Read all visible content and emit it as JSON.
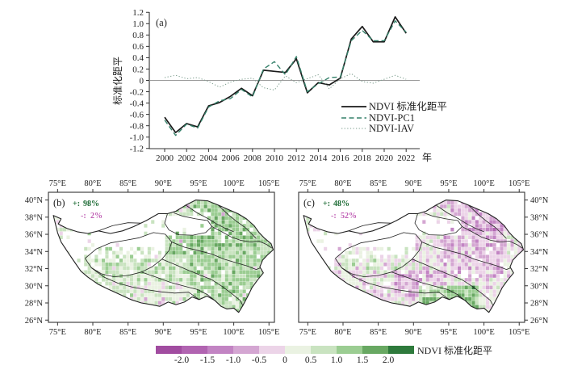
{
  "chart_data": [
    {
      "id": "a",
      "type": "line",
      "panel_label": "(a)",
      "ylabel": "标准化距平",
      "x_unit": "年",
      "years": [
        2000,
        2001,
        2002,
        2003,
        2004,
        2005,
        2006,
        2007,
        2008,
        2009,
        2010,
        2011,
        2012,
        2013,
        2014,
        2015,
        2016,
        2017,
        2018,
        2019,
        2020,
        2021,
        2022
      ],
      "x_tick_labels": [
        "2000",
        "2002",
        "2004",
        "2006",
        "2008",
        "2010",
        "2012",
        "2014",
        "2016",
        "2018",
        "2020",
        "2022"
      ],
      "ylim": [
        -1.2,
        1.2
      ],
      "y_tick_labels": [
        "1.2",
        "1.0",
        "0.8",
        "0.6",
        "0.4",
        "0.2",
        "0",
        "-0.2",
        "-0.4",
        "-0.6",
        "-0.8",
        "-1.0",
        "-1.2"
      ],
      "zero_line": true,
      "legend_position": "inside-right-bottom",
      "series": [
        {
          "name": "NDVI 标准化距平",
          "style": "solid",
          "color": "#1a1a1a",
          "values": [
            -0.65,
            -0.92,
            -0.76,
            -0.82,
            -0.45,
            -0.39,
            -0.28,
            -0.14,
            -0.27,
            0.18,
            0.16,
            0.14,
            0.38,
            -0.22,
            -0.04,
            -0.08,
            0.04,
            0.73,
            0.95,
            0.68,
            0.68,
            1.12,
            0.83
          ]
        },
        {
          "name": "NDVI-PC1",
          "style": "dashed",
          "color": "#35816a",
          "values": [
            -0.7,
            -0.97,
            -0.77,
            -0.84,
            -0.47,
            -0.36,
            -0.32,
            -0.16,
            -0.29,
            0.2,
            0.33,
            0.1,
            0.42,
            -0.2,
            -0.06,
            0.05,
            0.06,
            0.7,
            0.88,
            0.7,
            0.7,
            1.05,
            0.85
          ]
        },
        {
          "name": "NDVI-IAV",
          "style": "dotted",
          "color": "#7d9e8e",
          "values": [
            0.05,
            0.09,
            0.03,
            0.05,
            -0.02,
            -0.12,
            -0.03,
            0.02,
            0.04,
            -0.13,
            -0.17,
            0.08,
            -0.04,
            0.03,
            0.1,
            -0.15,
            0.03,
            0.12,
            -0.02,
            -0.05,
            0.02,
            0.09,
            0.02
          ]
        }
      ]
    },
    {
      "id": "b",
      "type": "map-raster",
      "panel_label": "(b)",
      "stats": {
        "positive_sign": "+:",
        "positive": "98%",
        "negative_sign": "-:",
        "negative": "2%"
      },
      "lon_tick_values": [
        75,
        80,
        85,
        90,
        95,
        100,
        105
      ],
      "lon_tick_labels": [
        "75°E",
        "80°E",
        "85°E",
        "90°E",
        "95°E",
        "100°E",
        "105°E"
      ],
      "lat_tick_values": [
        40,
        38,
        36,
        34,
        32,
        30,
        28,
        26
      ],
      "lat_tick_labels": [
        "40°N",
        "38°N",
        "36°N",
        "34°N",
        "32°N",
        "30°N",
        "28°N",
        "26°N"
      ],
      "lat_label_side": "left",
      "seed": 11,
      "mode": "positive"
    },
    {
      "id": "c",
      "type": "map-raster",
      "panel_label": "(c)",
      "stats": {
        "positive_sign": "+:",
        "positive": "48%",
        "negative_sign": "-:",
        "negative": "52%"
      },
      "lon_tick_values": [
        75,
        80,
        85,
        90,
        95,
        100,
        105
      ],
      "lon_tick_labels": [
        "75°E",
        "80°E",
        "85°E",
        "90°E",
        "95°E",
        "100°E",
        "105°E"
      ],
      "lat_tick_values": [
        40,
        38,
        36,
        34,
        32,
        30,
        28,
        26
      ],
      "lat_tick_labels": [
        "40°N",
        "38°N",
        "36°N",
        "34°N",
        "32°N",
        "30°N",
        "28°N",
        "26°N"
      ],
      "lat_label_side": "right",
      "seed": 29,
      "mode": "mixed"
    }
  ],
  "colorbar": {
    "title": "NDVI 标准化距平",
    "tick_labels": [
      "-2.0",
      "-1.5",
      "-1.0",
      "-0.5",
      "0",
      "0.5",
      "1.0",
      "1.5",
      "2.0"
    ],
    "tick_values": [
      -2.0,
      -1.5,
      -1.0,
      -0.5,
      0,
      0.5,
      1.0,
      1.5,
      2.0
    ],
    "colors": [
      "#a14ca0",
      "#b164b1",
      "#c284c3",
      "#d4a6d2",
      "#ecd4e8",
      "#eaf2e2",
      "#c9e3c0",
      "#9bcd92",
      "#68a862",
      "#2e7a3c"
    ]
  },
  "colors": {
    "axis": "#333333",
    "zero_line": "#9a9a9a",
    "map_outline": "#222222",
    "positive_label": "#1d6b35",
    "negative_label": "#c05fb5"
  }
}
